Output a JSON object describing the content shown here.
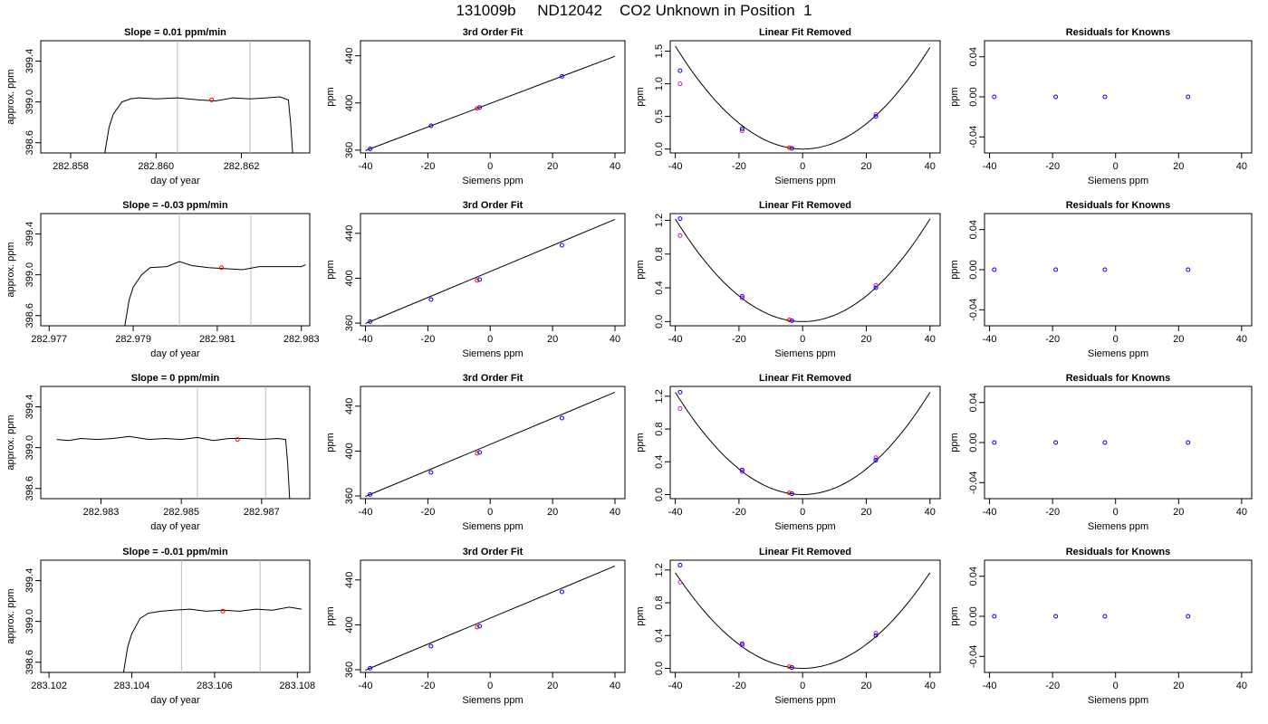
{
  "title": "131009b     ND12042    CO2 Unknown in Position  1",
  "chart_data": [
    {
      "type": "line",
      "title": "Slope =  0.01  ppm/min",
      "xlabel": "day of year",
      "ylabel": "approx. ppm",
      "xlim": [
        282.8573,
        282.8636
      ],
      "ylim": [
        398.5,
        399.6
      ],
      "xticks": [
        "282.858",
        "282.860",
        "282.862"
      ],
      "xtick_values": [
        282.858,
        282.86,
        282.862
      ],
      "yticks": [
        "398.6",
        "399.0",
        "399.4"
      ],
      "ytick_values": [
        398.6,
        399.0,
        399.4
      ],
      "vlines": [
        282.8605,
        282.8622
      ],
      "highlight": {
        "x": 282.8613,
        "y": 399.02,
        "color": "#ff0000"
      },
      "series": [
        {
          "x": [
            282.8588,
            282.8589,
            282.859,
            282.8592,
            282.8594,
            282.8596,
            282.86,
            282.8605,
            282.861,
            282.8614,
            282.8618,
            282.8622,
            282.8626,
            282.8629,
            282.8631,
            282.86315,
            282.8632
          ],
          "y": [
            398.5,
            398.75,
            398.88,
            399.0,
            399.03,
            399.04,
            399.03,
            399.04,
            399.02,
            399.01,
            399.04,
            399.03,
            399.04,
            399.05,
            399.02,
            398.8,
            398.5
          ]
        }
      ]
    },
    {
      "type": "scatter",
      "title": "3rd Order Fit",
      "xlabel": "Siemens ppm",
      "ylabel": "ppm",
      "xlim": [
        -41.6,
        43.2
      ],
      "ylim": [
        357.6,
        452.8
      ],
      "xticks": [
        "-40",
        "-20",
        "0",
        "20",
        "40"
      ],
      "xtick_values": [
        -40,
        -20,
        0,
        20,
        40
      ],
      "yticks": [
        "360",
        "400",
        "440"
      ],
      "ytick_values": [
        360,
        400,
        440
      ],
      "points": [
        {
          "x": -38.5,
          "y": 361.1
        },
        {
          "x": -19,
          "y": 380.6
        },
        {
          "x": -3.4,
          "y": 396.2
        },
        {
          "x": 23,
          "y": 422.6
        }
      ],
      "highlight": {
        "x": -4.2,
        "y": 395.4,
        "color": "#ff0000"
      },
      "line": {
        "x": [
          -40,
          40
        ],
        "y": [
          359.6,
          439.6
        ]
      }
    },
    {
      "type": "scatter",
      "title": "Linear Fit Removed",
      "xlabel": "Siemens ppm",
      "ylabel": "ppm",
      "xlim": [
        -41.6,
        43.2
      ],
      "ylim": [
        -0.06,
        1.66
      ],
      "xticks": [
        "-40",
        "-20",
        "0",
        "20",
        "40"
      ],
      "xtick_values": [
        -40,
        -20,
        0,
        20,
        40
      ],
      "yticks": [
        "0.0",
        "0.5",
        "1.0",
        "1.5"
      ],
      "ytick_values": [
        0,
        0.5,
        1.0,
        1.5
      ],
      "points": [
        {
          "x": -38.5,
          "y": 1.2
        },
        {
          "x": -19,
          "y": 0.31
        },
        {
          "x": -3.4,
          "y": 0.01
        },
        {
          "x": 23,
          "y": 0.5
        }
      ],
      "points2": [
        {
          "x": -38.5,
          "y": 1.0
        },
        {
          "x": -19,
          "y": 0.28
        },
        {
          "x": -3.4,
          "y": 0.01
        },
        {
          "x": 23,
          "y": 0.53
        }
      ],
      "highlight": {
        "x": -4.2,
        "y": 0.02,
        "color": "#ff0000"
      },
      "curve": {
        "vertex_x": 0,
        "a": 0.00098,
        "b": -0.00025
      }
    },
    {
      "type": "scatter",
      "title": "Residuals for Knowns",
      "xlabel": "Siemens ppm",
      "ylabel": "ppm",
      "xlim": [
        -41.6,
        43.2
      ],
      "ylim": [
        -0.056,
        0.056
      ],
      "xticks": [
        "-40",
        "-20",
        "0",
        "20",
        "40"
      ],
      "xtick_values": [
        -40,
        -20,
        0,
        20,
        40
      ],
      "yticks": [
        "-0.04",
        "0.00",
        "0.04"
      ],
      "ytick_values": [
        -0.04,
        0,
        0.04
      ],
      "points": [
        {
          "x": -38.5,
          "y": 0
        },
        {
          "x": -19,
          "y": 0
        },
        {
          "x": -3.4,
          "y": 0
        },
        {
          "x": 23,
          "y": 0
        }
      ]
    },
    {
      "type": "line",
      "title": "Slope =  -0.03  ppm/min",
      "xlabel": "day of year",
      "ylabel": "approx. ppm",
      "xlim": [
        282.9768,
        282.9832
      ],
      "ylim": [
        398.5,
        399.6
      ],
      "xticks": [
        "282.977",
        "282.979",
        "282.981",
        "282.983"
      ],
      "xtick_values": [
        282.977,
        282.979,
        282.981,
        282.983
      ],
      "yticks": [
        "398.6",
        "399.0",
        "399.4"
      ],
      "ytick_values": [
        398.6,
        399.0,
        399.4
      ],
      "vlines": [
        282.9801,
        282.9818
      ],
      "highlight": {
        "x": 282.9811,
        "y": 399.07,
        "color": "#ff0000"
      },
      "series": [
        {
          "x": [
            282.9788,
            282.9789,
            282.979,
            282.9792,
            282.9794,
            282.9798,
            282.9801,
            282.9804,
            282.9808,
            282.9812,
            282.9816,
            282.982,
            282.9825,
            282.983,
            282.9831
          ],
          "y": [
            398.5,
            398.75,
            398.88,
            399.0,
            399.07,
            399.08,
            399.13,
            399.09,
            399.07,
            399.06,
            399.05,
            399.08,
            399.08,
            399.08,
            399.1
          ]
        }
      ]
    },
    {
      "type": "scatter",
      "title": "3rd Order Fit",
      "xlabel": "Siemens ppm",
      "ylabel": "ppm",
      "xlim": [
        -41.6,
        43.2
      ],
      "ylim": [
        357.6,
        457.6
      ],
      "xticks": [
        "-40",
        "-20",
        "0",
        "20",
        "40"
      ],
      "xtick_values": [
        -40,
        -20,
        0,
        20,
        40
      ],
      "yticks": [
        "360",
        "400",
        "440"
      ],
      "ytick_values": [
        360,
        400,
        440
      ],
      "points": [
        {
          "x": -38.5,
          "y": 361.3
        },
        {
          "x": -19,
          "y": 381.0
        },
        {
          "x": -3.4,
          "y": 398.8
        },
        {
          "x": 23,
          "y": 429.4
        }
      ],
      "highlight": {
        "x": -4.2,
        "y": 398.0,
        "color": "#ff0000"
      },
      "line": {
        "x": [
          -40,
          40
        ],
        "y": [
          359.6,
          452.4
        ]
      }
    },
    {
      "type": "scatter",
      "title": "Linear Fit Removed",
      "xlabel": "Siemens ppm",
      "ylabel": "ppm",
      "xlim": [
        -41.6,
        43.2
      ],
      "ylim": [
        -0.05,
        1.28
      ],
      "xticks": [
        "-40",
        "-20",
        "0",
        "20",
        "40"
      ],
      "xtick_values": [
        -40,
        -20,
        0,
        20,
        40
      ],
      "yticks": [
        "0.0",
        "0.4",
        "0.8",
        "1.2"
      ],
      "ytick_values": [
        0,
        0.4,
        0.8,
        1.2
      ],
      "points": [
        {
          "x": -38.5,
          "y": 1.22
        },
        {
          "x": -19,
          "y": 0.3
        },
        {
          "x": -3.4,
          "y": 0.01
        },
        {
          "x": 23,
          "y": 0.4
        }
      ],
      "points2": [
        {
          "x": -38.5,
          "y": 1.02
        },
        {
          "x": -19,
          "y": 0.28
        },
        {
          "x": -3.4,
          "y": 0.01
        },
        {
          "x": 23,
          "y": 0.43
        }
      ],
      "highlight": {
        "x": -4.2,
        "y": 0.02,
        "color": "#ff0000"
      },
      "curve": {
        "vertex_x": 0,
        "a": 0.00076,
        "b": 0
      }
    },
    {
      "type": "scatter",
      "title": "Residuals for Knowns",
      "xlabel": "Siemens ppm",
      "ylabel": "ppm",
      "xlim": [
        -41.6,
        43.2
      ],
      "ylim": [
        -0.056,
        0.056
      ],
      "xticks": [
        "-40",
        "-20",
        "0",
        "20",
        "40"
      ],
      "xtick_values": [
        -40,
        -20,
        0,
        20,
        40
      ],
      "yticks": [
        "-0.04",
        "0.00",
        "0.04"
      ],
      "ytick_values": [
        -0.04,
        0,
        0.04
      ],
      "points": [
        {
          "x": -38.5,
          "y": 0
        },
        {
          "x": -19,
          "y": 0
        },
        {
          "x": -3.4,
          "y": 0
        },
        {
          "x": 23,
          "y": 0
        }
      ]
    },
    {
      "type": "line",
      "title": "Slope =  0  ppm/min",
      "xlabel": "day of year",
      "ylabel": "approx. ppm",
      "xlim": [
        282.9815,
        282.9882
      ],
      "ylim": [
        398.5,
        399.6
      ],
      "xticks": [
        "282.983",
        "282.985",
        "282.987"
      ],
      "xtick_values": [
        282.983,
        282.985,
        282.987
      ],
      "yticks": [
        "398.6",
        "399.0",
        "399.4"
      ],
      "ytick_values": [
        398.6,
        399.0,
        399.4
      ],
      "vlines": [
        282.9854,
        282.9871
      ],
      "highlight": {
        "x": 282.9864,
        "y": 399.08,
        "color": "#ff0000"
      },
      "series": [
        {
          "x": [
            282.9819,
            282.9822,
            282.9825,
            282.9829,
            282.9833,
            282.9837,
            282.9842,
            282.9846,
            282.985,
            282.9854,
            282.9858,
            282.9862,
            282.9866,
            282.987,
            282.9874,
            282.9876,
            282.98765,
            282.9877
          ],
          "y": [
            399.08,
            399.07,
            399.09,
            399.08,
            399.09,
            399.11,
            399.08,
            399.09,
            399.08,
            399.1,
            399.07,
            399.09,
            399.09,
            399.08,
            399.09,
            399.08,
            398.85,
            398.5
          ]
        }
      ]
    },
    {
      "type": "scatter",
      "title": "3rd Order Fit",
      "xlabel": "Siemens ppm",
      "ylabel": "ppm",
      "xlim": [
        -41.6,
        43.2
      ],
      "ylim": [
        357.6,
        457.6
      ],
      "xticks": [
        "-40",
        "-20",
        "0",
        "20",
        "40"
      ],
      "xtick_values": [
        -40,
        -20,
        0,
        20,
        40
      ],
      "yticks": [
        "360",
        "400",
        "440"
      ],
      "ytick_values": [
        360,
        400,
        440
      ],
      "points": [
        {
          "x": -38.5,
          "y": 361.3
        },
        {
          "x": -19,
          "y": 381.0
        },
        {
          "x": -3.4,
          "y": 398.8
        },
        {
          "x": 23,
          "y": 429.4
        }
      ],
      "highlight": {
        "x": -4.2,
        "y": 398.0,
        "color": "#ff0000"
      },
      "line": {
        "x": [
          -40,
          40
        ],
        "y": [
          359.6,
          452.4
        ]
      }
    },
    {
      "type": "scatter",
      "title": "Linear Fit Removed",
      "xlabel": "Siemens ppm",
      "ylabel": "ppm",
      "xlim": [
        -41.6,
        43.2
      ],
      "ylim": [
        -0.05,
        1.32
      ],
      "xticks": [
        "-40",
        "-20",
        "0",
        "20",
        "40"
      ],
      "xtick_values": [
        -40,
        -20,
        0,
        20,
        40
      ],
      "yticks": [
        "0.0",
        "0.4",
        "0.8",
        "1.2"
      ],
      "ytick_values": [
        0,
        0.4,
        0.8,
        1.2
      ],
      "points": [
        {
          "x": -38.5,
          "y": 1.25
        },
        {
          "x": -19,
          "y": 0.3
        },
        {
          "x": -3.4,
          "y": 0.01
        },
        {
          "x": 23,
          "y": 0.42
        }
      ],
      "points2": [
        {
          "x": -38.5,
          "y": 1.05
        },
        {
          "x": -19,
          "y": 0.28
        },
        {
          "x": -3.4,
          "y": 0.01
        },
        {
          "x": 23,
          "y": 0.45
        }
      ],
      "highlight": {
        "x": -4.2,
        "y": 0.02,
        "color": "#ff0000"
      },
      "curve": {
        "vertex_x": 0,
        "a": 0.00078,
        "b": 0
      }
    },
    {
      "type": "scatter",
      "title": "Residuals for Knowns",
      "xlabel": "Siemens ppm",
      "ylabel": "ppm",
      "xlim": [
        -41.6,
        43.2
      ],
      "ylim": [
        -0.056,
        0.056
      ],
      "xticks": [
        "-40",
        "-20",
        "0",
        "20",
        "40"
      ],
      "xtick_values": [
        -40,
        -20,
        0,
        20,
        40
      ],
      "yticks": [
        "-0.04",
        "0.00",
        "0.04"
      ],
      "ytick_values": [
        -0.04,
        0,
        0.04
      ],
      "points": [
        {
          "x": -38.5,
          "y": 0
        },
        {
          "x": -19,
          "y": 0
        },
        {
          "x": -3.4,
          "y": 0
        },
        {
          "x": 23,
          "y": 0
        }
      ]
    },
    {
      "type": "line",
      "title": "Slope =  -0.01  ppm/min",
      "xlabel": "day of year",
      "ylabel": "approx. ppm",
      "xlim": [
        283.1018,
        283.1083
      ],
      "ylim": [
        398.5,
        399.6
      ],
      "xticks": [
        "283.102",
        "283.104",
        "283.106",
        "283.108"
      ],
      "xtick_values": [
        283.102,
        283.104,
        283.106,
        283.108
      ],
      "yticks": [
        "398.6",
        "399.0",
        "399.4"
      ],
      "ytick_values": [
        398.6,
        399.0,
        399.4
      ],
      "vlines": [
        283.1052,
        283.1071
      ],
      "highlight": {
        "x": 283.1062,
        "y": 399.1,
        "color": "#ff0000"
      },
      "series": [
        {
          "x": [
            283.1038,
            283.1039,
            283.104,
            283.1042,
            283.1044,
            283.1047,
            283.105,
            283.1054,
            283.1058,
            283.1062,
            283.1066,
            283.107,
            283.1074,
            283.1078,
            283.1081
          ],
          "y": [
            398.5,
            398.75,
            398.88,
            399.03,
            399.08,
            399.1,
            399.11,
            399.12,
            399.1,
            399.11,
            399.1,
            399.12,
            399.11,
            399.14,
            399.12
          ]
        }
      ]
    },
    {
      "type": "scatter",
      "title": "3rd Order Fit",
      "xlabel": "Siemens ppm",
      "ylabel": "ppm",
      "xlim": [
        -41.6,
        43.2
      ],
      "ylim": [
        357.6,
        457.6
      ],
      "xticks": [
        "-40",
        "-20",
        "0",
        "20",
        "40"
      ],
      "xtick_values": [
        -40,
        -20,
        0,
        20,
        40
      ],
      "yticks": [
        "360",
        "400",
        "440"
      ],
      "ytick_values": [
        360,
        400,
        440
      ],
      "points": [
        {
          "x": -38.5,
          "y": 361.3
        },
        {
          "x": -19,
          "y": 381.0
        },
        {
          "x": -3.4,
          "y": 398.8
        },
        {
          "x": 23,
          "y": 429.4
        }
      ],
      "highlight": {
        "x": -4.2,
        "y": 398.0,
        "color": "#ff0000"
      },
      "line": {
        "x": [
          -40,
          40
        ],
        "y": [
          359.6,
          452.4
        ]
      }
    },
    {
      "type": "scatter",
      "title": "Linear Fit Removed",
      "xlabel": "Siemens ppm",
      "ylabel": "ppm",
      "xlim": [
        -41.6,
        43.2
      ],
      "ylim": [
        -0.05,
        1.32
      ],
      "xticks": [
        "-40",
        "-20",
        "0",
        "20",
        "40"
      ],
      "xtick_values": [
        -40,
        -20,
        0,
        20,
        40
      ],
      "yticks": [
        "0.0",
        "0.4",
        "0.8",
        "1.2"
      ],
      "ytick_values": [
        0,
        0.4,
        0.8,
        1.2
      ],
      "points": [
        {
          "x": -38.5,
          "y": 1.26
        },
        {
          "x": -19,
          "y": 0.3
        },
        {
          "x": -3.4,
          "y": 0.01
        },
        {
          "x": 23,
          "y": 0.4
        }
      ],
      "points2": [
        {
          "x": -38.5,
          "y": 1.05
        },
        {
          "x": -19,
          "y": 0.28
        },
        {
          "x": -3.4,
          "y": 0.01
        },
        {
          "x": 23,
          "y": 0.43
        }
      ],
      "highlight": {
        "x": -4.2,
        "y": 0.02,
        "color": "#ff0000"
      },
      "curve": {
        "vertex_x": 0,
        "a": 0.00073,
        "b": 0
      }
    },
    {
      "type": "scatter",
      "title": "Residuals for Knowns",
      "xlabel": "Siemens ppm",
      "ylabel": "ppm",
      "xlim": [
        -41.6,
        43.2
      ],
      "ylim": [
        -0.056,
        0.056
      ],
      "xticks": [
        "-40",
        "-20",
        "0",
        "20",
        "40"
      ],
      "xtick_values": [
        -40,
        -20,
        0,
        20,
        40
      ],
      "yticks": [
        "-0.04",
        "0.00",
        "0.04"
      ],
      "ytick_values": [
        -0.04,
        0,
        0.04
      ],
      "points": [
        {
          "x": -38.5,
          "y": 0
        },
        {
          "x": -19,
          "y": 0
        },
        {
          "x": -3.4,
          "y": 0
        },
        {
          "x": 23,
          "y": 0
        }
      ]
    }
  ],
  "colors": {
    "primary_marker": "#0000ff",
    "secondary_marker": "#cc00cc",
    "highlight": "#ff0000",
    "vline": "#bbbbbb",
    "line": "#000000"
  }
}
